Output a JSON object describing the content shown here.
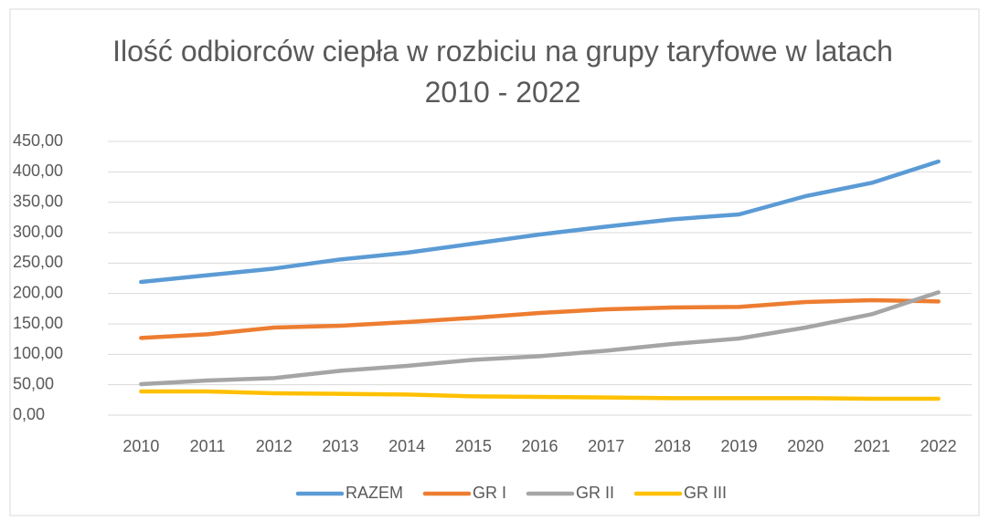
{
  "chart_data": {
    "type": "line",
    "title": "Ilość odbiorców ciepła w rozbiciu na grupy taryfowe w latach 2010 - 2022",
    "categories": [
      "2010",
      "2011",
      "2012",
      "2013",
      "2014",
      "2015",
      "2016",
      "2017",
      "2018",
      "2019",
      "2020",
      "2021",
      "2022"
    ],
    "series": [
      {
        "name": "RAZEM",
        "color": "#5b9bd5",
        "values": [
          219,
          230,
          241,
          256,
          267,
          282,
          297,
          310,
          322,
          330,
          360,
          382,
          417
        ]
      },
      {
        "name": "GR I",
        "color": "#ed7d31",
        "values": [
          127,
          133,
          144,
          147,
          153,
          160,
          168,
          174,
          177,
          178,
          186,
          189,
          187
        ]
      },
      {
        "name": "GR II",
        "color": "#a5a5a5",
        "values": [
          51,
          57,
          61,
          73,
          81,
          91,
          97,
          106,
          117,
          126,
          144,
          166,
          202
        ]
      },
      {
        "name": "GR III",
        "color": "#ffc000",
        "values": [
          39,
          39,
          36,
          35,
          34,
          31,
          30,
          29,
          28,
          28,
          28,
          27,
          27
        ]
      }
    ],
    "ylim": [
      0,
      450
    ],
    "yticks": [
      {
        "value": 0,
        "label": "0,00"
      },
      {
        "value": 50,
        "label": "50,00"
      },
      {
        "value": 100,
        "label": "100,00"
      },
      {
        "value": 150,
        "label": "150,00"
      },
      {
        "value": 200,
        "label": "200,00"
      },
      {
        "value": 250,
        "label": "250,00"
      },
      {
        "value": 300,
        "label": "300,00"
      },
      {
        "value": 350,
        "label": "350,00"
      },
      {
        "value": 400,
        "label": "400,00"
      },
      {
        "value": 450,
        "label": "450,00"
      }
    ],
    "grid": true,
    "legend": "bottom"
  }
}
